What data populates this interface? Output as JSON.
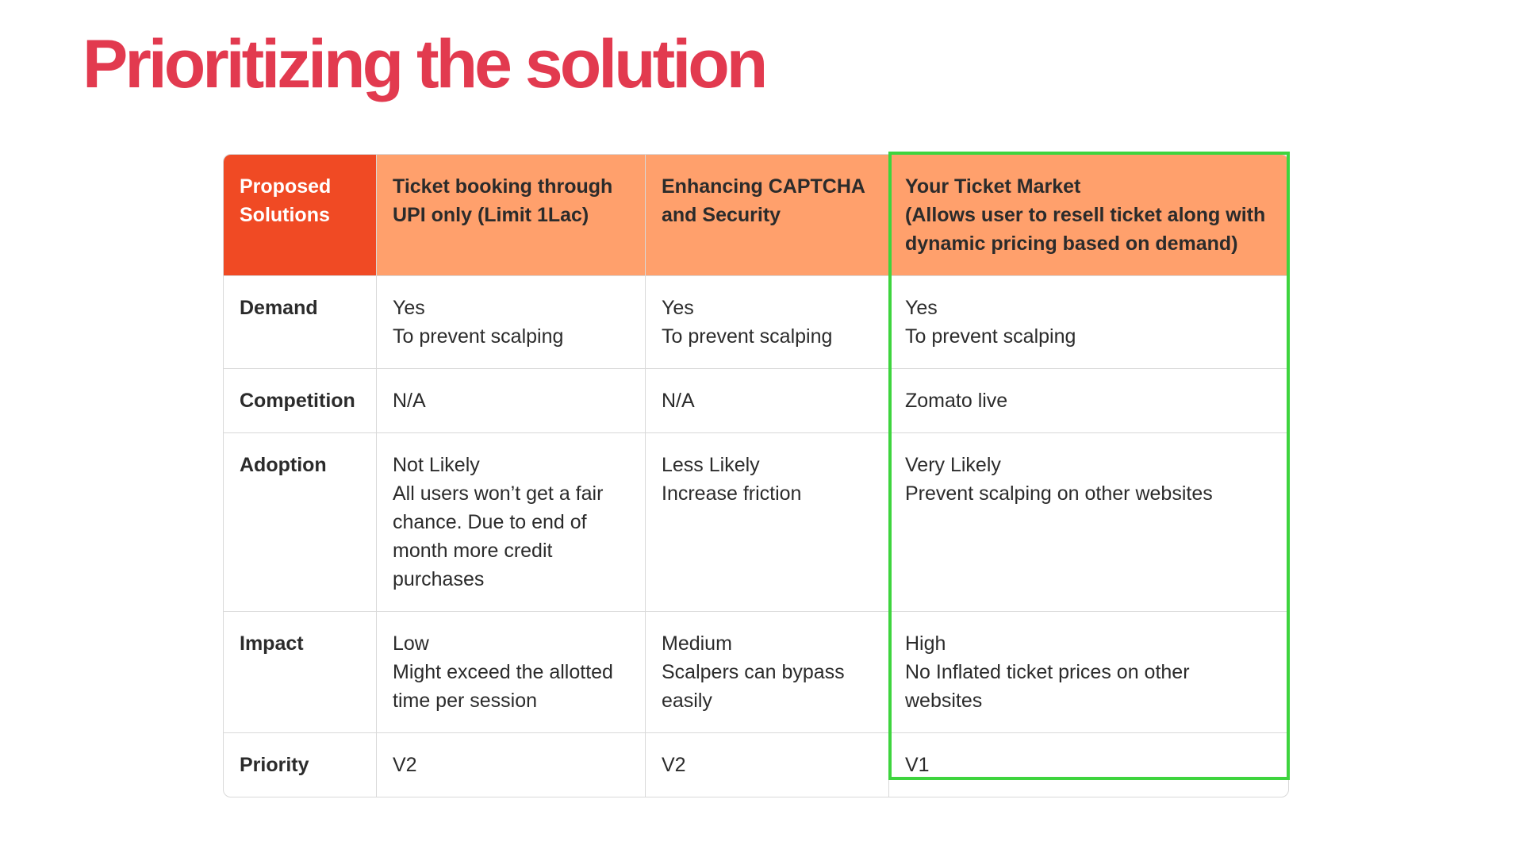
{
  "title": "Prioritizing the solution",
  "colors": {
    "title": "#e23a4f",
    "header_corner": "#f04a24",
    "header": "#ffa06c",
    "highlight": "#3ed43e",
    "grid": "#d9d9d9"
  },
  "table": {
    "header": {
      "corner": [
        "Proposed",
        "Solutions"
      ],
      "col1": [
        "Ticket booking through",
        "UPI only (Limit 1Lac)"
      ],
      "col2": [
        "Enhancing CAPTCHA",
        "and Security"
      ],
      "col3": [
        "Your Ticket Market",
        "(Allows user to resell ticket along with",
        "dynamic pricing based on demand)"
      ]
    },
    "rows": [
      {
        "label": "Demand",
        "col1": [
          "Yes",
          "To prevent scalping"
        ],
        "col2": [
          "Yes",
          "To prevent scalping"
        ],
        "col3": [
          "Yes",
          "To prevent scalping"
        ]
      },
      {
        "label": "Competition",
        "col1": [
          "N/A"
        ],
        "col2": [
          "N/A"
        ],
        "col3": [
          "Zomato live"
        ]
      },
      {
        "label": "Adoption",
        "col1": [
          "Not Likely",
          "All users won’t get a fair",
          "chance. Due to end of",
          "month more credit",
          "purchases"
        ],
        "col2": [
          "Less Likely",
          "Increase friction"
        ],
        "col3": [
          "Very Likely",
          "Prevent scalping on other websites"
        ]
      },
      {
        "label": "Impact",
        "col1": [
          "Low",
          "Might exceed the allotted",
          "time per session"
        ],
        "col2": [
          "Medium",
          "Scalpers can bypass",
          "easily"
        ],
        "col3": [
          "High",
          "No Inflated ticket prices on other",
          "websites"
        ]
      },
      {
        "label": "Priority",
        "col1": [
          "V2"
        ],
        "col2": [
          "V2"
        ],
        "col3": [
          "V1"
        ]
      }
    ]
  }
}
